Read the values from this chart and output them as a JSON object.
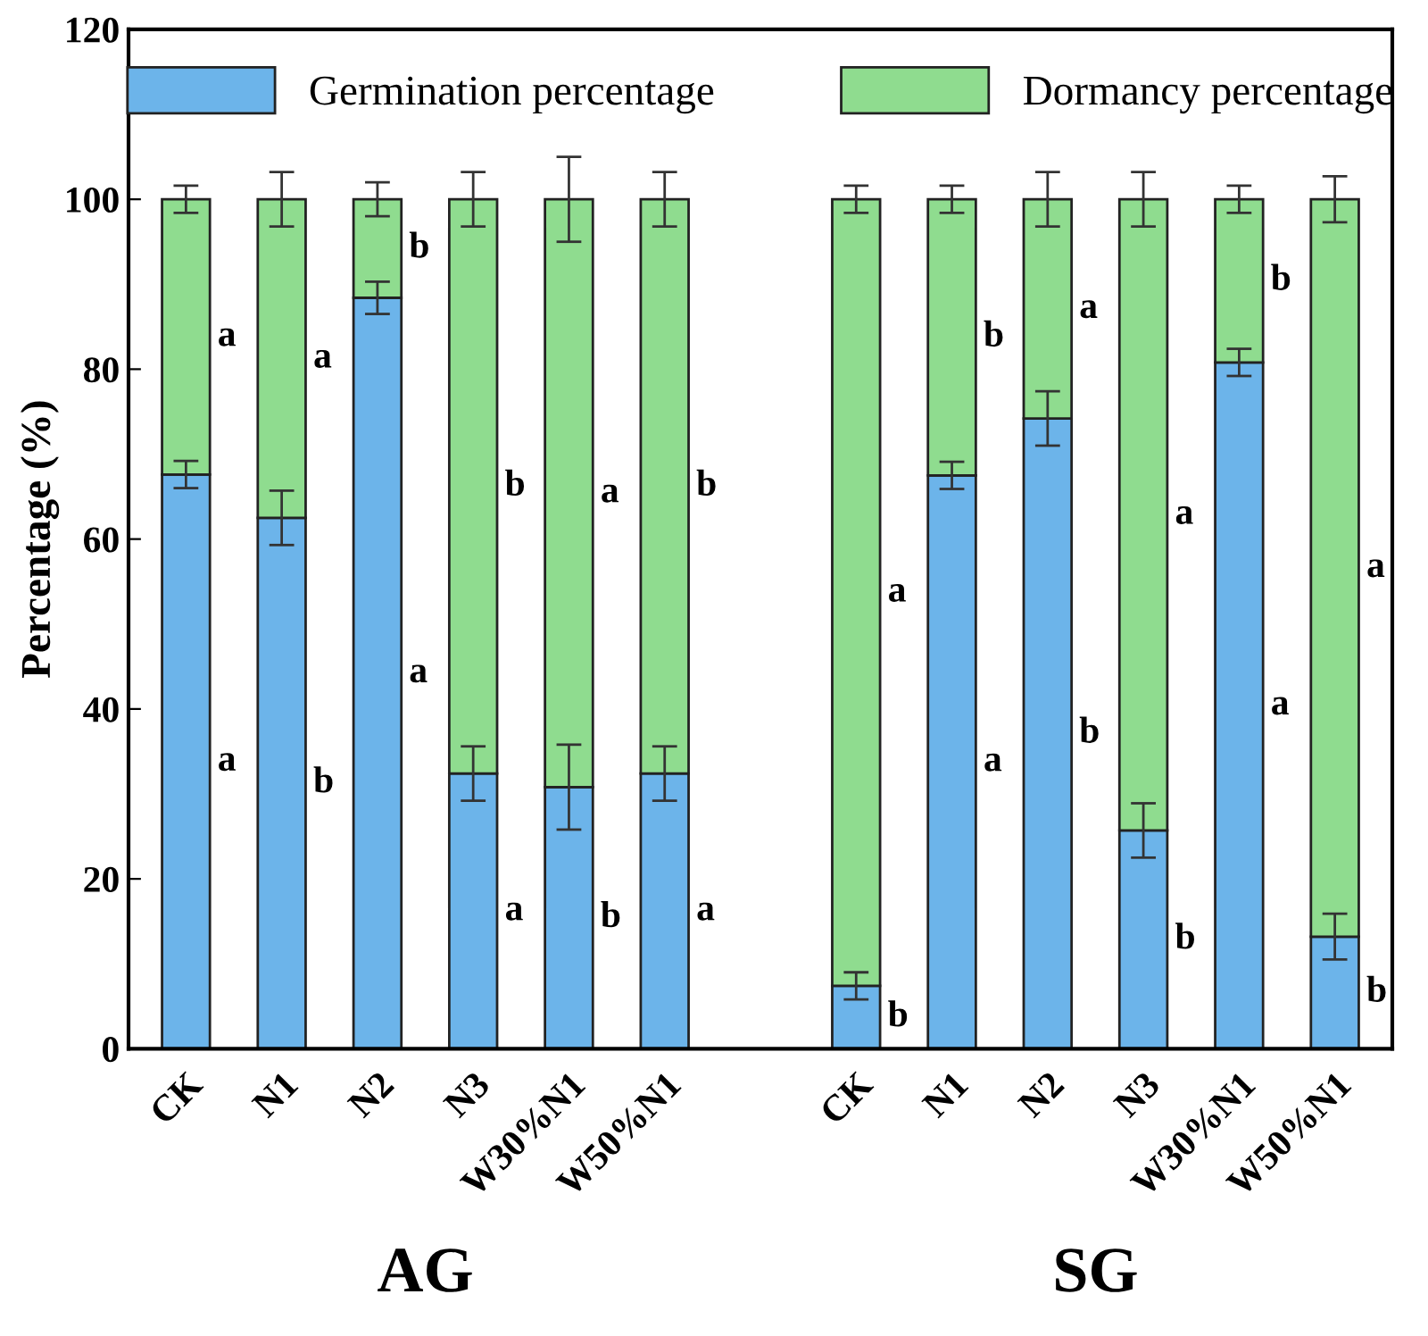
{
  "chart_data": {
    "type": "bar",
    "stacked": true,
    "ylabel": "Percentage (%)",
    "categories": [
      "CK",
      "N1",
      "N2",
      "N3",
      "W30%N1",
      "W50%N1",
      null,
      "CK",
      "N1",
      "N2",
      "N3",
      "W30%N1",
      "W50%N1"
    ],
    "series": [
      {
        "name": "Germination percentage",
        "color": "#6cb4ea",
        "values": [
          67.6,
          62.5,
          88.4,
          32.4,
          30.8,
          32.4,
          null,
          7.4,
          67.5,
          74.2,
          25.7,
          80.8,
          13.2
        ],
        "errors": [
          1.6,
          3.2,
          1.9,
          3.2,
          5.0,
          3.2,
          null,
          1.6,
          1.6,
          3.2,
          3.2,
          1.6,
          2.7
        ],
        "value_labels": [
          "a",
          "b",
          "a",
          "a",
          "b",
          "a",
          null,
          "b",
          "a",
          "b",
          "b",
          "a",
          "b"
        ]
      },
      {
        "name": "Dormancy percentage",
        "color": "#8fdc8f",
        "values": [
          32.4,
          37.5,
          11.6,
          67.6,
          69.2,
          67.6,
          null,
          92.6,
          32.5,
          25.8,
          74.3,
          19.2,
          86.8
        ],
        "errors": [
          1.6,
          3.2,
          2.0,
          3.2,
          5.0,
          3.2,
          null,
          1.6,
          1.6,
          3.2,
          3.2,
          1.6,
          2.7
        ],
        "value_labels": [
          "a",
          "a",
          "b",
          "b",
          "a",
          "b",
          null,
          "a",
          "b",
          "a",
          "a",
          "b",
          "a"
        ]
      }
    ],
    "ylim": [
      0,
      120
    ],
    "yticks": [
      0,
      20,
      40,
      60,
      80,
      100,
      120
    ],
    "grid": false,
    "legend": "top",
    "annotations": [
      "AG",
      "SG"
    ]
  }
}
